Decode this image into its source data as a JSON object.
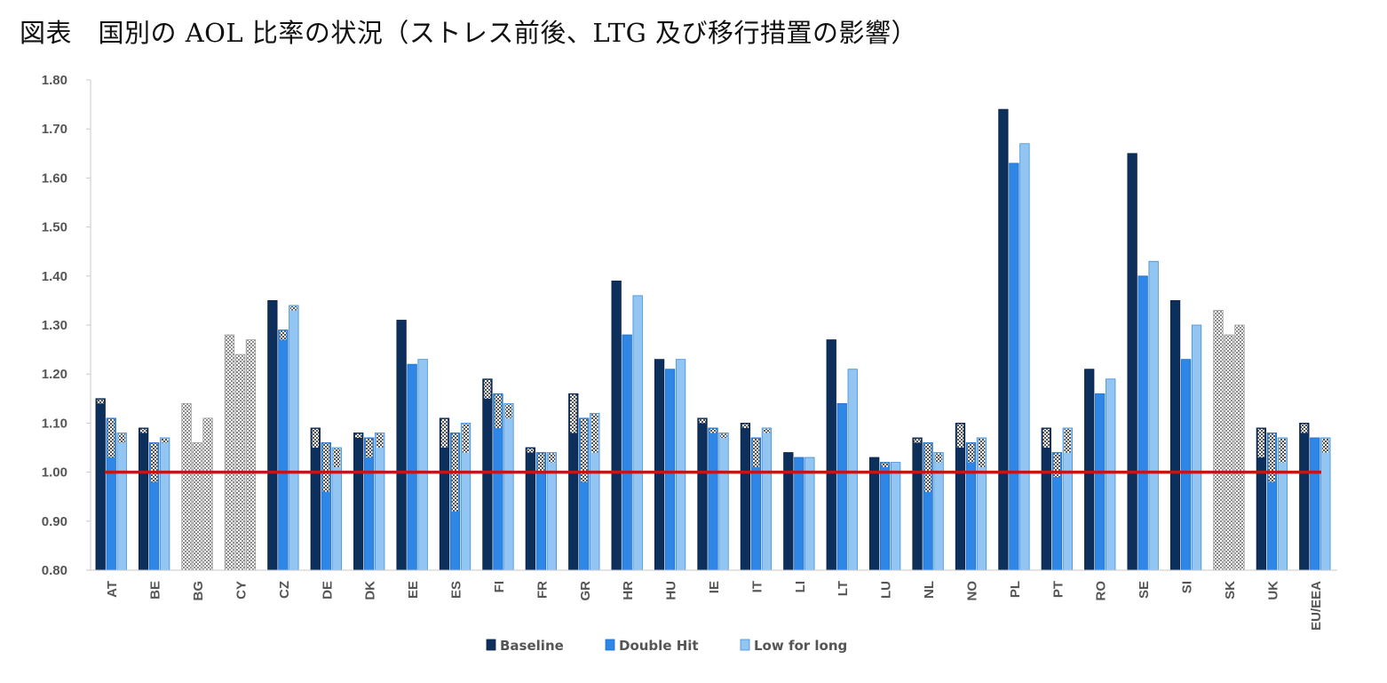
{
  "title": "図表　国別の AOL 比率の状況（ストレス前後、LTG 及び移行措置の影響）",
  "colors": {
    "baseline": "#0d2f5c",
    "double_hit": "#2e86e6",
    "low_for_long": "#93c5f2",
    "reference_line": "#c0161c",
    "hatched": "#a9a9a9",
    "axis": "#c8c8c8"
  },
  "chart_data": {
    "type": "bar",
    "ylim": [
      0.8,
      1.8
    ],
    "yticks": [
      "0.80",
      "0.90",
      "1.00",
      "1.10",
      "1.20",
      "1.30",
      "1.40",
      "1.50",
      "1.60",
      "1.70",
      "1.80"
    ],
    "reference_line": 1.0,
    "categories": [
      "AT",
      "BE",
      "BG",
      "CY",
      "CZ",
      "DE",
      "DK",
      "EE",
      "ES",
      "FI",
      "FR",
      "GR",
      "HR",
      "HU",
      "IE",
      "IT",
      "LI",
      "LT",
      "LU",
      "NL",
      "NO",
      "PL",
      "PT",
      "RO",
      "SE",
      "SI",
      "SK",
      "UK",
      "EU/EEA"
    ],
    "hatched_only": [
      "BG",
      "CY",
      "SK"
    ],
    "series": [
      {
        "name": "Baseline",
        "values": [
          1.15,
          1.09,
          1.14,
          1.28,
          1.35,
          1.09,
          1.08,
          1.31,
          1.11,
          1.19,
          1.05,
          1.16,
          1.39,
          1.23,
          1.11,
          1.1,
          1.04,
          1.27,
          1.03,
          1.07,
          1.1,
          1.74,
          1.09,
          1.21,
          1.65,
          1.35,
          1.33,
          1.09,
          1.1
        ],
        "hatch_bottom": [
          1.14,
          1.08,
          0.8,
          0.8,
          null,
          1.05,
          1.07,
          null,
          1.05,
          1.15,
          1.04,
          1.08,
          null,
          null,
          1.1,
          1.09,
          null,
          null,
          null,
          1.06,
          1.05,
          null,
          1.05,
          null,
          null,
          null,
          0.8,
          1.03,
          1.08
        ]
      },
      {
        "name": "Double Hit",
        "values": [
          1.11,
          1.06,
          1.06,
          1.24,
          1.29,
          1.06,
          1.07,
          1.22,
          1.08,
          1.16,
          1.04,
          1.11,
          1.28,
          1.21,
          1.09,
          1.07,
          1.03,
          1.14,
          1.02,
          1.06,
          1.06,
          1.63,
          1.04,
          1.16,
          1.4,
          1.23,
          1.28,
          1.08,
          1.07
        ],
        "hatch_bottom": [
          1.03,
          0.98,
          0.8,
          0.8,
          1.27,
          0.96,
          1.03,
          null,
          0.92,
          1.09,
          1.0,
          0.98,
          null,
          null,
          1.08,
          1.01,
          null,
          null,
          1.01,
          0.96,
          1.02,
          null,
          0.99,
          null,
          null,
          null,
          0.8,
          0.98,
          null
        ]
      },
      {
        "name": "Low for long",
        "values": [
          1.08,
          1.07,
          1.11,
          1.27,
          1.34,
          1.05,
          1.08,
          1.23,
          1.1,
          1.14,
          1.04,
          1.12,
          1.36,
          1.23,
          1.08,
          1.09,
          1.03,
          1.21,
          1.02,
          1.04,
          1.07,
          1.67,
          1.09,
          1.19,
          1.43,
          1.3,
          1.3,
          1.07,
          1.07
        ],
        "hatch_bottom": [
          1.06,
          1.06,
          0.8,
          0.8,
          1.33,
          1.01,
          1.05,
          null,
          1.04,
          1.11,
          1.02,
          1.04,
          null,
          null,
          1.07,
          1.08,
          null,
          null,
          null,
          1.02,
          1.01,
          null,
          1.04,
          null,
          null,
          null,
          0.8,
          1.02,
          1.04
        ]
      }
    ],
    "legend": [
      "Baseline",
      "Double Hit",
      "Low for long"
    ],
    "legend_position": "bottom-center"
  }
}
